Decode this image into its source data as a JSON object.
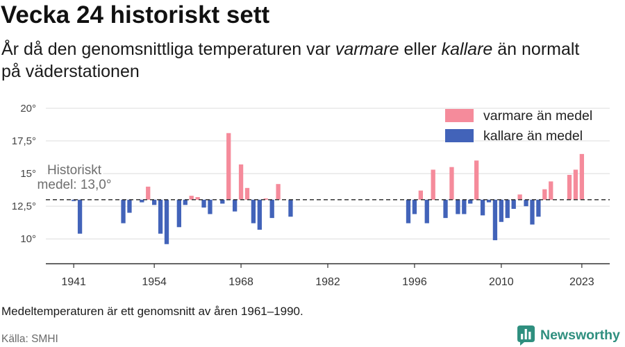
{
  "title": "Vecka 24 historiskt sett",
  "subtitle": {
    "before_warm": "År då den genomsnittliga temperaturen var ",
    "warm_word": "varmare",
    "between": " eller ",
    "cold_word": "kallare",
    "after_cold": " än normalt",
    "line2": "på väderstationen"
  },
  "chart_data": {
    "type": "bar",
    "x": [
      1941,
      1942,
      1949,
      1950,
      1952,
      1953,
      1954,
      1955,
      1956,
      1958,
      1959,
      1960,
      1961,
      1962,
      1963,
      1965,
      1966,
      1967,
      1968,
      1969,
      1970,
      1971,
      1972,
      1973,
      1974,
      1976,
      1995,
      1996,
      1997,
      1998,
      1999,
      2001,
      2002,
      2003,
      2004,
      2005,
      2006,
      2007,
      2008,
      2009,
      2010,
      2011,
      2012,
      2013,
      2014,
      2015,
      2016,
      2017,
      2018,
      2021,
      2022,
      2023
    ],
    "values": [
      12.9,
      10.4,
      11.2,
      12.0,
      12.8,
      14.0,
      12.6,
      10.4,
      9.6,
      10.9,
      12.6,
      13.3,
      13.2,
      12.4,
      11.9,
      12.7,
      18.1,
      12.1,
      15.7,
      13.9,
      11.2,
      10.7,
      13.1,
      11.6,
      14.2,
      11.7,
      11.2,
      11.9,
      13.7,
      11.2,
      15.3,
      11.6,
      15.5,
      11.9,
      11.9,
      12.7,
      16.0,
      11.8,
      12.8,
      9.9,
      11.3,
      11.6,
      12.3,
      13.4,
      12.5,
      11.1,
      11.7,
      13.8,
      14.4,
      14.9,
      15.3,
      16.5
    ],
    "baseline": 13.0,
    "xlim": [
      1936.5,
      2027.5
    ],
    "ylim": [
      8.1,
      20
    ],
    "x_ticks": [
      {
        "value": 1941,
        "label": "1941"
      },
      {
        "value": 1954,
        "label": "1954"
      },
      {
        "value": 1968,
        "label": "1968"
      },
      {
        "value": 1982,
        "label": "1982"
      },
      {
        "value": 1996,
        "label": "1996"
      },
      {
        "value": 2010,
        "label": "2010"
      },
      {
        "value": 2023,
        "label": "2023"
      }
    ],
    "y_ticks": [
      {
        "value": 10,
        "label": "10°"
      },
      {
        "value": 12.5,
        "label": "12,5°"
      },
      {
        "value": 15,
        "label": "15°"
      },
      {
        "value": 17.5,
        "label": "17,5°"
      },
      {
        "value": 20,
        "label": "20°"
      }
    ],
    "grid": "horizontal",
    "legend_position": "top-right",
    "legend": [
      {
        "label": "varmare än medel",
        "color": "#f58b9b"
      },
      {
        "label": "kallare än medel",
        "color": "#4263b9"
      }
    ],
    "annotation": {
      "lines": [
        "Historiskt",
        "medel: 13,0°"
      ]
    }
  },
  "colors": {
    "warm": "#f58b9b",
    "cold": "#4263b9",
    "baseline": "#333333"
  },
  "footnote": "Medeltemperaturen är ett genomsnitt av åren 1961–1990.",
  "source": "Källa: SMHI",
  "logo": {
    "text": "Newsworthy",
    "icon": "bar-chart-icon",
    "color": "#2f8f7f"
  }
}
